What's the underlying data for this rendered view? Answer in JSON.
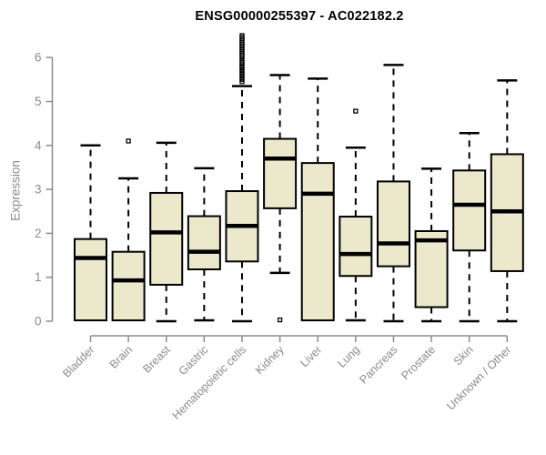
{
  "chart_data": {
    "type": "boxplot",
    "title": "ENSG00000255397 - AC022182.2",
    "ylabel": "Expression",
    "xlabel": "",
    "ylim": [
      0,
      6.5
    ],
    "yticks": [
      0,
      1,
      2,
      3,
      4,
      5,
      6
    ],
    "grid": false,
    "legend": "none",
    "categories": [
      "Bladder",
      "Brain",
      "Breast",
      "Gastric",
      "Hematopoietic cells",
      "Kidney",
      "Liver",
      "Lung",
      "Pancreas",
      "Prostate",
      "Skin",
      "Unknown / Other"
    ],
    "series": [
      {
        "name": "Bladder",
        "whisker_low": 0.0,
        "q1": 0.02,
        "median": 1.44,
        "q3": 1.87,
        "whisker_high": 4.0,
        "outliers": []
      },
      {
        "name": "Brain",
        "whisker_low": 0.0,
        "q1": 0.02,
        "median": 0.93,
        "q3": 1.58,
        "whisker_high": 3.25,
        "outliers": [
          4.1
        ]
      },
      {
        "name": "Breast",
        "whisker_low": 0.0,
        "q1": 0.83,
        "median": 2.02,
        "q3": 2.92,
        "whisker_high": 4.06,
        "outliers": []
      },
      {
        "name": "Gastric",
        "whisker_low": 0.02,
        "q1": 1.18,
        "median": 1.58,
        "q3": 2.39,
        "whisker_high": 3.48,
        "outliers": []
      },
      {
        "name": "Hematopoietic cells",
        "whisker_low": 0.0,
        "q1": 1.36,
        "median": 2.17,
        "q3": 2.96,
        "whisker_high": 5.35,
        "outliers": [
          5.45,
          5.5,
          5.53,
          5.57,
          5.62,
          5.67,
          5.72,
          5.77,
          5.8,
          5.84,
          5.88,
          5.92,
          5.97,
          6.02,
          6.06,
          6.1,
          6.14,
          6.18,
          6.22,
          6.26,
          6.3,
          6.34,
          6.38,
          6.42,
          6.46,
          6.5
        ]
      },
      {
        "name": "Kidney",
        "whisker_low": 1.1,
        "q1": 2.57,
        "median": 3.7,
        "q3": 4.15,
        "whisker_high": 5.6,
        "outliers": [
          0.03
        ]
      },
      {
        "name": "Liver",
        "whisker_low": 0.0,
        "q1": 0.02,
        "median": 2.9,
        "q3": 3.6,
        "whisker_high": 5.52,
        "outliers": []
      },
      {
        "name": "Lung",
        "whisker_low": 0.02,
        "q1": 1.03,
        "median": 1.53,
        "q3": 2.38,
        "whisker_high": 3.95,
        "outliers": [
          4.78
        ]
      },
      {
        "name": "Pancreas",
        "whisker_low": 0.0,
        "q1": 1.25,
        "median": 1.77,
        "q3": 3.18,
        "whisker_high": 5.83,
        "outliers": []
      },
      {
        "name": "Prostate",
        "whisker_low": 0.0,
        "q1": 0.32,
        "median": 1.84,
        "q3": 2.05,
        "whisker_high": 3.47,
        "outliers": []
      },
      {
        "name": "Skin",
        "whisker_low": 0.0,
        "q1": 1.61,
        "median": 2.65,
        "q3": 3.43,
        "whisker_high": 4.28,
        "outliers": []
      },
      {
        "name": "Unknown / Other",
        "whisker_low": 0.0,
        "q1": 1.14,
        "median": 2.5,
        "q3": 3.8,
        "whisker_high": 5.48,
        "outliers": []
      }
    ],
    "colors": {
      "box_fill": "#ece8cc",
      "box_stroke": "#000000",
      "median": "#000000",
      "whisker": "#000000",
      "outlier": "#000000",
      "axis": "#8a8a8a",
      "tick_label": "#8a8a8a",
      "title": "#000000"
    }
  }
}
